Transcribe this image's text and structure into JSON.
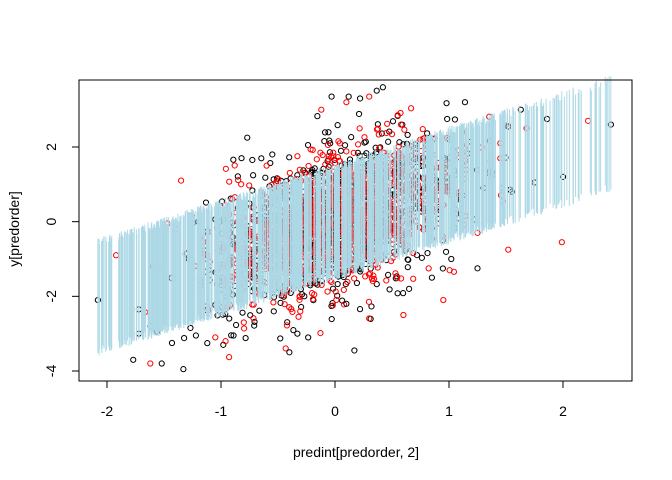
{
  "chart_data": {
    "type": "scatter",
    "title": "",
    "xlabel": "predint[predorder, 2]",
    "ylabel": "y[predorder]",
    "xlim": [
      -2.2,
      2.6
    ],
    "ylim": [
      -4.2,
      3.7
    ],
    "x_ticks": [
      -2,
      -1,
      0,
      1,
      2
    ],
    "y_ticks": [
      -4,
      -2,
      0,
      2
    ],
    "x_tick_labels": [
      "-2",
      "-1",
      "0",
      "1",
      "2"
    ],
    "y_tick_labels": [
      "-4",
      "-2",
      "0",
      "2"
    ],
    "grid": false,
    "legend": "none",
    "prediction_band": {
      "color": "#add8e6",
      "lower_intercept": -1.45,
      "upper_intercept": 1.45,
      "slope": 0.97,
      "x_range": [
        -2.08,
        2.42
      ],
      "dense_x_range": [
        -1.55,
        1.38
      ]
    },
    "series": [
      {
        "color": "#000000",
        "marker": "open-circle",
        "points": [
          [
            -2.08,
            -2.1
          ],
          [
            -1.77,
            -3.7
          ],
          [
            -1.72,
            -3.0
          ],
          [
            -1.62,
            -2.8
          ],
          [
            -1.56,
            -2.95
          ],
          [
            -1.52,
            -3.8
          ],
          [
            -1.43,
            -3.25
          ],
          [
            -1.33,
            -3.95
          ],
          [
            -1.22,
            -3.05
          ],
          [
            -0.98,
            -3.3
          ],
          [
            -0.89,
            -3.05
          ],
          [
            -0.4,
            -3.5
          ],
          [
            -0.33,
            -3.0
          ],
          [
            0.17,
            -3.45
          ],
          [
            0.12,
            3.35
          ],
          [
            -0.03,
            3.35
          ],
          [
            0.22,
            3.3
          ],
          [
            0.42,
            3.6
          ],
          [
            1.14,
            3.2
          ],
          [
            1.52,
            2.55
          ],
          [
            1.63,
            3.0
          ],
          [
            1.86,
            2.75
          ],
          [
            2.0,
            1.2
          ],
          [
            2.42,
            2.6
          ],
          [
            1.55,
            0.8
          ],
          [
            1.75,
            1.05
          ],
          [
            -1.2,
            0.0
          ],
          [
            -0.98,
            0.05
          ],
          [
            -0.82,
            1.7
          ],
          [
            -0.55,
            1.8
          ],
          [
            1.25,
            -1.25
          ],
          [
            1.02,
            -1.0
          ],
          [
            0.85,
            -1.5
          ],
          [
            -1.72,
            -2.35
          ],
          [
            -1.6,
            -1.2
          ],
          [
            -1.3,
            -0.85
          ],
          [
            0.65,
            -1.8
          ],
          [
            0.1,
            -2.2
          ]
        ]
      },
      {
        "color": "#ff0000",
        "marker": "open-circle",
        "points": [
          [
            -1.92,
            -0.9
          ],
          [
            -1.62,
            -3.8
          ],
          [
            -1.47,
            -0.05
          ],
          [
            -1.35,
            1.1
          ],
          [
            -1.05,
            -3.1
          ],
          [
            -0.96,
            -3.2
          ],
          [
            -0.8,
            -2.7
          ],
          [
            -0.12,
            3.0
          ],
          [
            0.1,
            3.2
          ],
          [
            0.3,
            3.35
          ],
          [
            1.45,
            2.1
          ],
          [
            1.68,
            2.5
          ],
          [
            1.99,
            -0.55
          ],
          [
            2.22,
            2.7
          ],
          [
            1.52,
            -0.75
          ],
          [
            1.25,
            -0.3
          ],
          [
            -0.6,
            1.5
          ],
          [
            -0.9,
            0.6
          ],
          [
            0.95,
            -2.1
          ],
          [
            0.6,
            -2.5
          ],
          [
            -1.4,
            -0.2
          ],
          [
            0.55,
            2.85
          ]
        ]
      }
    ]
  }
}
